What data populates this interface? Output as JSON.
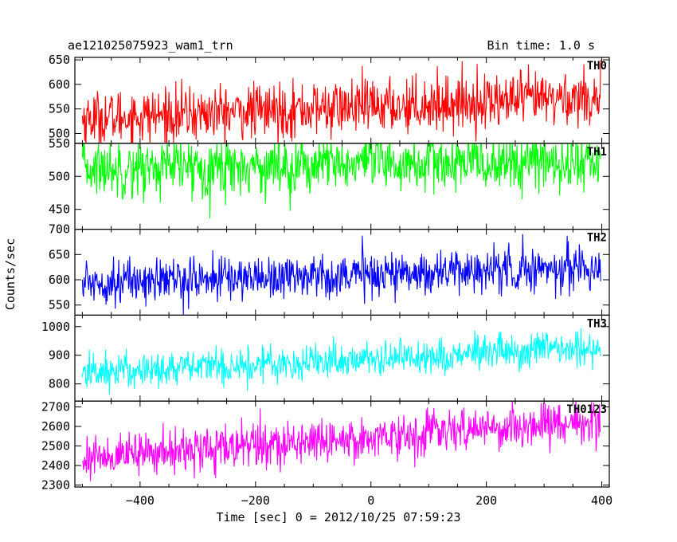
{
  "chart_data": {
    "type": "line",
    "title": "ae121025075923_wam1_trn",
    "subtitle": "Bin time: 1.0 s",
    "xlabel": "Time [sec] 0 = 2012/10/25 07:59:23",
    "ylabel": "Counts/sec",
    "xlim": [
      -513,
      413
    ],
    "x_ticks": [
      -400,
      -200,
      0,
      200,
      400
    ],
    "x_tick_labels": [
      "−400",
      "−200",
      "0",
      "200",
      "400"
    ],
    "x_range": [
      -500,
      398
    ],
    "grid": false,
    "panels": [
      {
        "name": "TH0",
        "color": "#ff0000",
        "ylim": [
          480,
          655
        ],
        "y_ticks": [
          500,
          550,
          600,
          650
        ],
        "trend": [
          530,
          575
        ],
        "noise": 28
      },
      {
        "name": "TH1",
        "color": "#00ff00",
        "ylim": [
          420,
          550
        ],
        "y_ticks": [
          450,
          500,
          550
        ],
        "trend": [
          512,
          522
        ],
        "noise": 22
      },
      {
        "name": "TH2",
        "color": "#0000ff",
        "ylim": [
          530,
          700
        ],
        "y_ticks": [
          550,
          600,
          650,
          700
        ],
        "trend": [
          595,
          625
        ],
        "noise": 22
      },
      {
        "name": "TH3",
        "color": "#00ffff",
        "ylim": [
          740,
          1040
        ],
        "y_ticks": [
          800,
          900,
          1000
        ],
        "trend": [
          840,
          925
        ],
        "noise": 32
      },
      {
        "name": "TH0123",
        "color": "#ff00ff",
        "ylim": [
          2290,
          2730
        ],
        "y_ticks": [
          2300,
          2400,
          2500,
          2600,
          2700
        ],
        "trend": [
          2440,
          2630
        ],
        "noise": 55
      }
    ]
  }
}
